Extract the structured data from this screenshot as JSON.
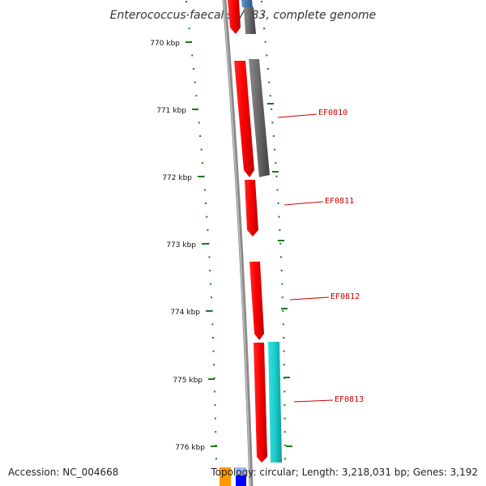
{
  "title": "Enterococcus faecalis V583, complete genome",
  "footer": {
    "accession": "Accession: NC_004668",
    "topology": "Topology: circular; Length: 3,218,031 bp; Genes: 3,192"
  },
  "colors": {
    "forward_gene": "#ff0000",
    "reverse_gene": "#707070",
    "cyan_gene": "#1ecfcf",
    "backbone": "#8a8a8a",
    "ruler": "#1a7a1a",
    "label": "#cc0000",
    "blue_gene": "#3a6ea8",
    "orange_gene": "#ff9900",
    "dark_blue_gene": "#0000ff"
  },
  "ruler": {
    "unit": "kbp",
    "ticks": [
      "770 kbp",
      "771 kbp",
      "772 kbp",
      "773 kbp",
      "774 kbp",
      "775 kbp",
      "776 kbp"
    ]
  },
  "genes": [
    {
      "label": "EF0810"
    },
    {
      "label": "EF0811"
    },
    {
      "label": "EF0812"
    },
    {
      "label": "EF0813"
    }
  ]
}
